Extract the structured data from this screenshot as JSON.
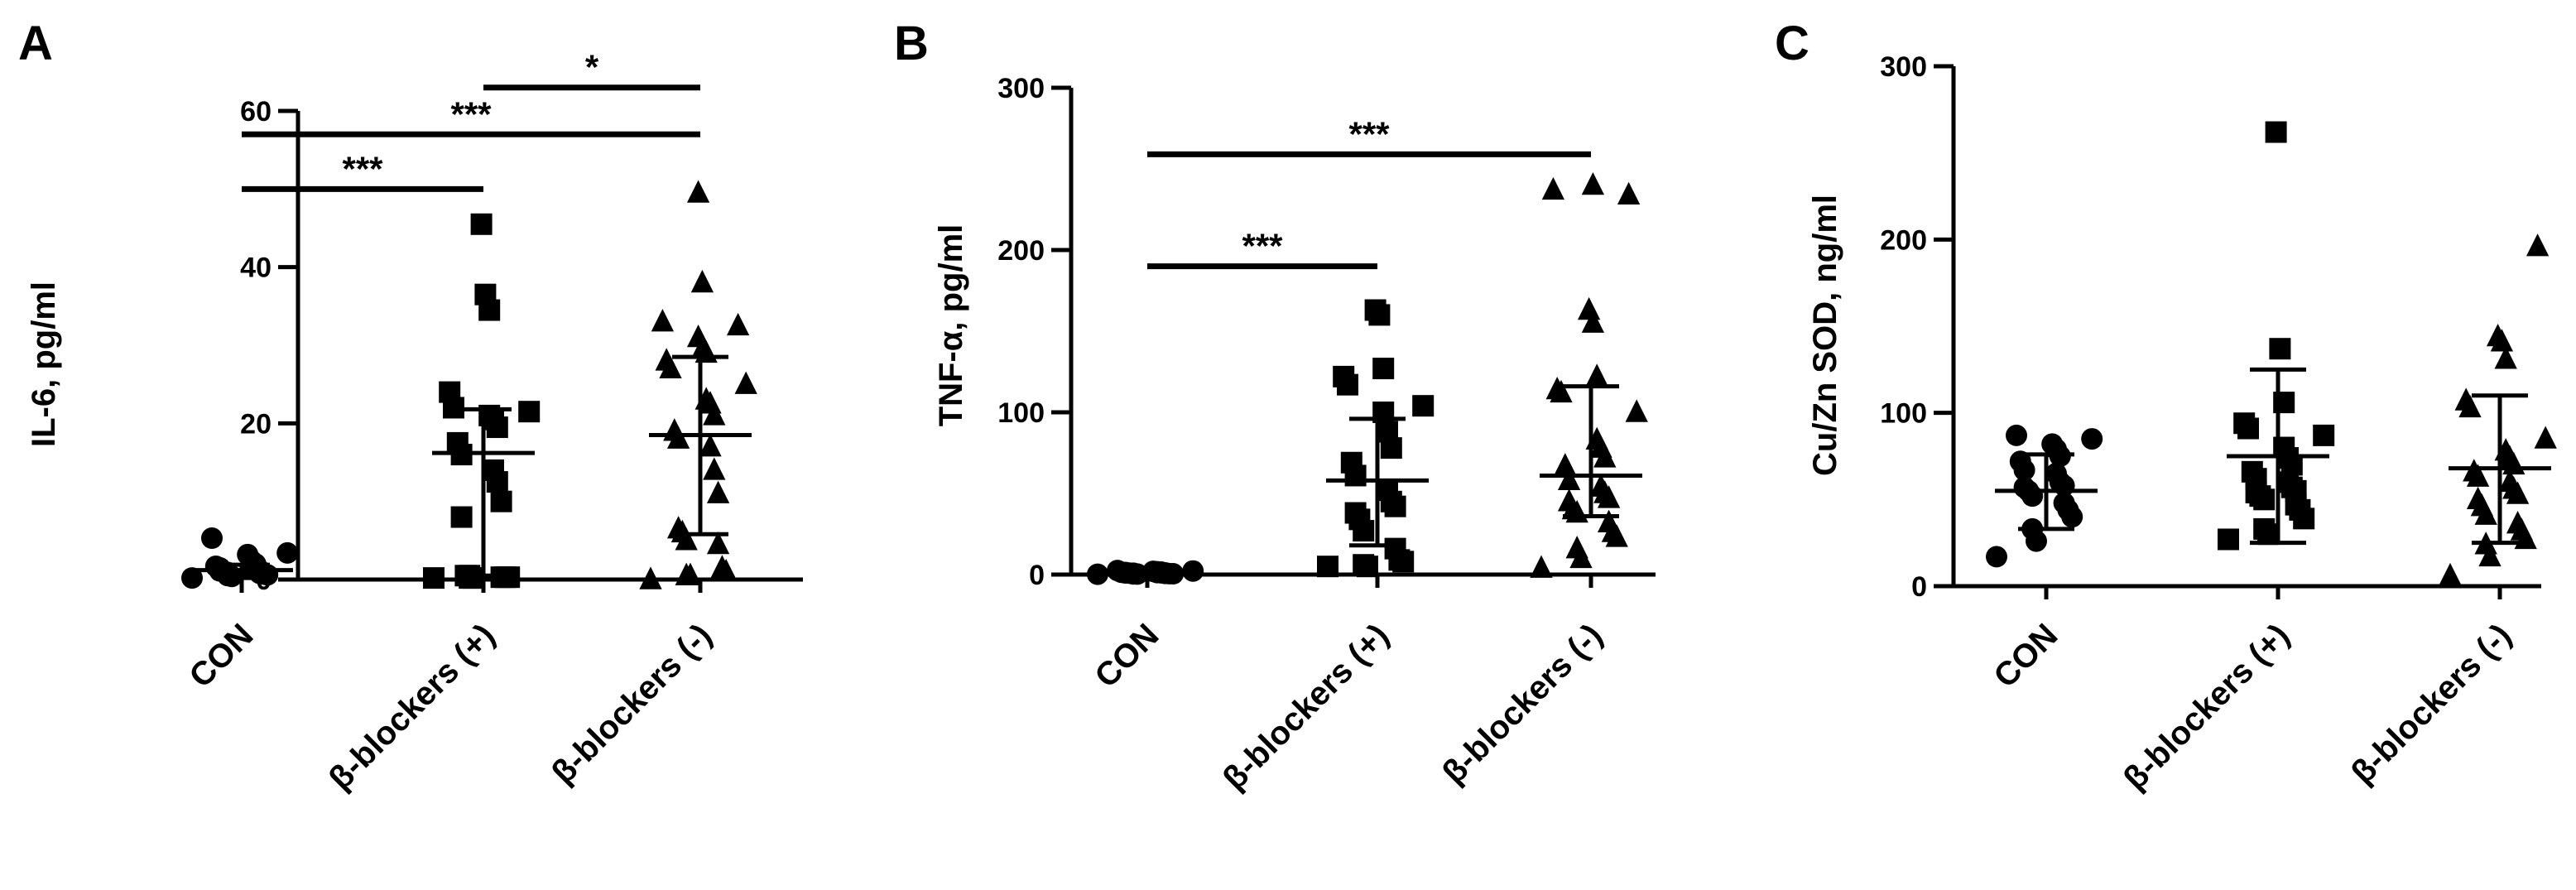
{
  "chart_data": [
    {
      "panel": "A",
      "type": "scatter",
      "ylabel": "IL-6, pg/ml",
      "ylim": [
        0,
        60
      ],
      "yticks": [
        "0",
        "20",
        "40",
        "60"
      ],
      "categories": [
        "CON",
        "β-blockers (+)",
        "β-blockers (-)"
      ],
      "groups": [
        {
          "category": "CON",
          "marker": "circle",
          "mean": 1.2,
          "sd": [
            0.2,
            1.9
          ],
          "values": [
            0.2,
            0.4,
            0.5,
            0.6,
            0.7,
            0.8,
            0.9,
            1.0,
            1.1,
            1.2,
            1.3,
            1.4,
            1.5,
            1.7,
            2.0,
            2.4,
            3.2,
            3.4,
            5.3
          ]
        },
        {
          "category": "β-blockers (+)",
          "marker": "square",
          "mean": 16.2,
          "sd": [
            0.5,
            21.8
          ],
          "values": [
            0.2,
            0.2,
            0.2,
            0.3,
            0.3,
            0.3,
            0.5,
            0.5,
            8.0,
            10.0,
            12.5,
            14.0,
            16.0,
            17.5,
            19.5,
            20.5,
            21.0,
            21.5,
            22.0,
            24.0,
            34.5,
            36.5,
            45.5
          ]
        },
        {
          "category": "β-blockers (-)",
          "marker": "triangle",
          "mean": 18.5,
          "sd": [
            5.8,
            28.5
          ],
          "values": [
            0.0,
            0.5,
            0.5,
            1.0,
            1.5,
            4.5,
            5.0,
            6.0,
            6.5,
            11.0,
            14.0,
            17.0,
            18.0,
            19.0,
            21.0,
            22.5,
            23.0,
            25.0,
            27.0,
            28.0,
            29.0,
            29.5,
            31.0,
            32.5,
            33.0,
            38.0,
            49.5
          ]
        }
      ],
      "significance": [
        {
          "from": "CON",
          "to": "β-blockers (+)",
          "y": 50,
          "label": "***"
        },
        {
          "from": "CON",
          "to": "β-blockers (-)",
          "y": 57,
          "label": "***"
        },
        {
          "from": "β-blockers (+)",
          "to": "β-blockers (-)",
          "y": 63,
          "label": "*"
        }
      ]
    },
    {
      "panel": "B",
      "type": "scatter",
      "ylabel": "TNF-α, pg/ml",
      "ylim": [
        0,
        300
      ],
      "yticks": [
        "0",
        "100",
        "200",
        "300"
      ],
      "categories": [
        "CON",
        "β-blockers (+)",
        "β-blockers (-)"
      ],
      "groups": [
        {
          "category": "CON",
          "marker": "circle",
          "mean": 1.0,
          "sd": [
            0.2,
            1.8
          ],
          "values": [
            0.2,
            0.3,
            0.4,
            0.5,
            0.6,
            0.7,
            0.8,
            0.9,
            1.0,
            1.0,
            1.1,
            1.2,
            1.3,
            1.4,
            1.5,
            1.7,
            2.0,
            2.2,
            2.5
          ]
        },
        {
          "category": "β-blockers (+)",
          "marker": "square",
          "mean": 58,
          "sd": [
            18,
            96
          ],
          "values": [
            5,
            5,
            6,
            8,
            9,
            16,
            27,
            34,
            38,
            42,
            45,
            52,
            61,
            69,
            78,
            88,
            100,
            104,
            117,
            122,
            127,
            160,
            163
          ]
        },
        {
          "category": "β-blockers (-)",
          "marker": "triangle",
          "mean": 61,
          "sd": [
            36,
            116
          ],
          "values": [
            4,
            10,
            16,
            23,
            26,
            32,
            38,
            40,
            45,
            47,
            50,
            54,
            58,
            67,
            72,
            78,
            83,
            100,
            112,
            114,
            122,
            155,
            163,
            234,
            237,
            240
          ]
        }
      ],
      "significance": [
        {
          "from": "CON",
          "to": "β-blockers (+)",
          "y": 190,
          "label": "***"
        },
        {
          "from": "CON",
          "to": "β-blockers (-)",
          "y": 259,
          "label": "***"
        }
      ]
    },
    {
      "panel": "C",
      "type": "scatter",
      "ylabel": "Cu/Zn SOD, ng/ml",
      "ylim": [
        0,
        300
      ],
      "yticks": [
        "0",
        "100",
        "200",
        "300"
      ],
      "categories": [
        "CON",
        "β-blockers (+)",
        "β-blockers (-)"
      ],
      "groups": [
        {
          "category": "CON",
          "marker": "circle",
          "mean": 55,
          "sd": [
            33,
            76
          ],
          "values": [
            17,
            26,
            33,
            40,
            44,
            48,
            52,
            55,
            57,
            58,
            60,
            65,
            67,
            72,
            75,
            79,
            82,
            85,
            87
          ]
        },
        {
          "category": "β-blockers (+)",
          "marker": "square",
          "mean": 75,
          "sd": [
            25,
            125
          ],
          "values": [
            27,
            30,
            33,
            39,
            44,
            47,
            50,
            52,
            54,
            55,
            57,
            60,
            62,
            66,
            70,
            74,
            80,
            87,
            91,
            94,
            106,
            137,
            262
          ]
        },
        {
          "category": "β-blockers (-)",
          "marker": "triangle",
          "mean": 68,
          "sd": [
            25,
            110
          ],
          "values": [
            6,
            17,
            24,
            27,
            32,
            36,
            41,
            46,
            50,
            53,
            56,
            60,
            63,
            66,
            70,
            74,
            78,
            85,
            103,
            107,
            131,
            141,
            144,
            196
          ]
        }
      ],
      "significance": []
    }
  ]
}
